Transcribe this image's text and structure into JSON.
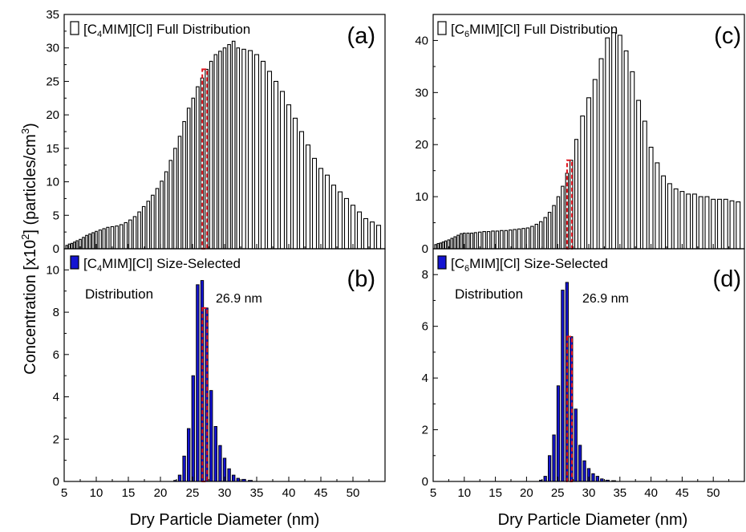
{
  "figure": {
    "ylabel": "Concentration [x10²] (particles/cm³)",
    "ylabel_main": "Concentration [x10",
    "ylabel_sup1": "2",
    "ylabel_mid": "] (particles/cm",
    "ylabel_sup2": "3",
    "ylabel_end": ")",
    "xlabel": "Dry Particle Diameter (nm)"
  },
  "colors": {
    "full_bar_fill": "#ffffff",
    "bar_edge": "#000000",
    "selected_bar_fill": "#1414d2",
    "marker_line": "#e1141e"
  },
  "chart_data": [
    {
      "panel": "(a)",
      "type": "bar",
      "legend": {
        "pre": "[C",
        "sub": "4",
        "post": "MIM][Cl] Full Distribution",
        "placement": "top-left"
      },
      "xlim": [
        5,
        55
      ],
      "ylim": [
        0,
        35
      ],
      "x_ticks": [
        5,
        10,
        15,
        20,
        25,
        30,
        35,
        40,
        45,
        50
      ],
      "y_ticks": [
        0,
        5,
        10,
        15,
        20,
        25,
        30,
        35
      ],
      "marker_x": 26.9,
      "x": [
        5.4,
        5.8,
        6.2,
        6.6,
        7,
        7.5,
        8,
        8.5,
        9,
        9.5,
        10,
        10.6,
        11.2,
        11.8,
        12.5,
        13.2,
        13.9,
        14.6,
        15.3,
        16,
        16.7,
        17.4,
        18.1,
        18.8,
        19.5,
        20.2,
        20.9,
        21.6,
        22.3,
        23,
        23.7,
        24.4,
        25.1,
        25.8,
        26.5,
        27.2,
        27.9,
        28.6,
        29.3,
        30,
        30.7,
        31.4,
        32.1,
        33,
        34,
        35,
        36,
        37,
        38,
        39,
        40,
        41,
        42,
        43,
        44,
        45,
        46,
        47,
        48,
        49,
        50,
        51,
        52,
        53,
        54,
        55
      ],
      "values": [
        0.5,
        0.7,
        0.8,
        1.0,
        1.2,
        1.4,
        1.7,
        2.0,
        2.2,
        2.4,
        2.6,
        2.8,
        3.0,
        3.2,
        3.3,
        3.4,
        3.6,
        3.9,
        4.3,
        4.8,
        5.5,
        6.3,
        7.1,
        8.0,
        9.0,
        10.1,
        11.5,
        13.2,
        15.0,
        16.8,
        19.0,
        21.0,
        22.5,
        24.2,
        25.5,
        26.8,
        28.0,
        29.0,
        29.5,
        30.0,
        30.5,
        31.0,
        30.0,
        29.8,
        29.6,
        29.0,
        28.0,
        26.5,
        25.0,
        23.5,
        21.5,
        19.5,
        17.5,
        15.5,
        13.5,
        12.0,
        11.0,
        9.5,
        8.5,
        7.5,
        6.5,
        5.5,
        4.5,
        4.0,
        3.5,
        4.5
      ]
    },
    {
      "panel": "(b)",
      "type": "bar",
      "legend": {
        "pre": "[C",
        "sub": "4",
        "post": "MIM][Cl] Size-Selected",
        "line2": "Distribution",
        "placement": "top-left"
      },
      "annotation": "26.9 nm",
      "xlim": [
        5,
        55
      ],
      "ylim": [
        0,
        11
      ],
      "x_ticks": [
        5,
        10,
        15,
        20,
        25,
        30,
        35,
        40,
        45,
        50
      ],
      "y_ticks": [
        0,
        2,
        4,
        6,
        8,
        10
      ],
      "marker_x": 26.9,
      "x": [
        22.3,
        23,
        23.7,
        24.4,
        25.1,
        25.8,
        26.5,
        27.2,
        27.9,
        28.6,
        29.3,
        30,
        30.7,
        31.4,
        32.1,
        33,
        34
      ],
      "values": [
        0.05,
        0.3,
        1.2,
        2.5,
        5.0,
        9.3,
        9.5,
        8.2,
        4.3,
        2.6,
        1.7,
        1.1,
        0.6,
        0.3,
        0.15,
        0.1,
        0.05
      ]
    },
    {
      "panel": "(c)",
      "type": "bar",
      "legend": {
        "pre": "[C",
        "sub": "6",
        "post": "MIM][Cl] Full Distribution",
        "placement": "top-left"
      },
      "xlim": [
        5,
        55
      ],
      "ylim": [
        0,
        45
      ],
      "x_ticks": [
        5,
        10,
        15,
        20,
        25,
        30,
        35,
        40,
        45,
        50
      ],
      "y_ticks": [
        0,
        10,
        20,
        30,
        40
      ],
      "marker_x": 26.9,
      "x": [
        5.4,
        5.8,
        6.2,
        6.6,
        7,
        7.5,
        8,
        8.5,
        9,
        9.5,
        10,
        10.6,
        11.2,
        11.8,
        12.5,
        13.2,
        13.9,
        14.6,
        15.3,
        16,
        16.7,
        17.4,
        18.1,
        18.8,
        19.5,
        20.2,
        20.9,
        21.6,
        22.3,
        23,
        23.7,
        24.4,
        25.1,
        25.8,
        26.5,
        27.2,
        28,
        29,
        30,
        31,
        32,
        33,
        34,
        35,
        36,
        37,
        38,
        39,
        40,
        41,
        42,
        43,
        44,
        45,
        46,
        47,
        48,
        49,
        50,
        51,
        52,
        53,
        54,
        55
      ],
      "values": [
        0.8,
        1.0,
        1.1,
        1.3,
        1.5,
        1.7,
        2.0,
        2.3,
        2.6,
        2.9,
        3.0,
        3.0,
        3.0,
        3.1,
        3.2,
        3.3,
        3.3,
        3.4,
        3.4,
        3.5,
        3.5,
        3.6,
        3.7,
        3.8,
        3.9,
        4.0,
        4.3,
        4.7,
        5.2,
        6.0,
        7.0,
        8.3,
        10.0,
        12.0,
        14.5,
        17.0,
        21.0,
        25.5,
        29.0,
        32.5,
        36.5,
        40.5,
        41.5,
        41.0,
        38.0,
        34.0,
        28.5,
        24.5,
        19.5,
        16.5,
        14.0,
        12.5,
        11.5,
        11.0,
        10.5,
        10.5,
        10.0,
        10.0,
        9.5,
        9.5,
        9.5,
        9.2,
        9.0,
        9.0
      ]
    },
    {
      "panel": "(d)",
      "type": "bar",
      "legend": {
        "pre": "[C",
        "sub": "6",
        "post": "MIM][Cl] Size-Selected",
        "line2": "Distribution",
        "placement": "top-left"
      },
      "annotation": "26.9 nm",
      "xlim": [
        5,
        55
      ],
      "ylim": [
        0,
        9
      ],
      "x_ticks": [
        5,
        10,
        15,
        20,
        25,
        30,
        35,
        40,
        45,
        50
      ],
      "y_ticks": [
        0,
        2,
        4,
        6,
        8
      ],
      "marker_x": 26.9,
      "x": [
        22.3,
        23,
        23.7,
        24.4,
        25.1,
        25.8,
        26.5,
        27.2,
        27.9,
        28.6,
        29.3,
        30,
        30.7,
        31.4,
        32.1,
        33,
        34
      ],
      "values": [
        0.05,
        0.2,
        1.0,
        1.8,
        3.7,
        7.4,
        7.7,
        5.6,
        2.8,
        1.4,
        0.8,
        0.5,
        0.3,
        0.2,
        0.1,
        0.05,
        0.03
      ]
    }
  ]
}
